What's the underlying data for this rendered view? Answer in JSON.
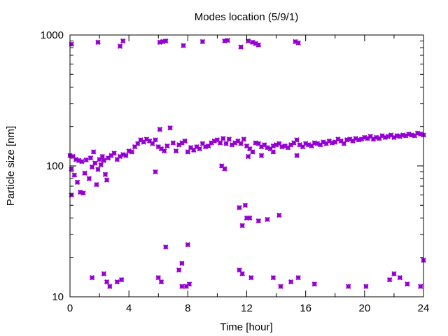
{
  "chart_data": {
    "type": "scatter",
    "title": "Modes location (5/9/1)",
    "xlabel": "Time [hour]",
    "ylabel": "Particle size [nm]",
    "xlim": [
      0,
      24
    ],
    "ylim": [
      10,
      1000
    ],
    "yscale": "log",
    "xticks": [
      "0",
      "4",
      "8",
      "12",
      "16",
      "20",
      "24"
    ],
    "yticks": [
      "10",
      "100",
      "1000"
    ],
    "grid": false,
    "marker_color": "#9400d3",
    "points": [
      [
        0.0,
        120
      ],
      [
        0.1,
        95
      ],
      [
        0.1,
        60
      ],
      [
        0.2,
        118
      ],
      [
        0.3,
        85
      ],
      [
        0.4,
        112
      ],
      [
        0.5,
        75
      ],
      [
        0.6,
        110
      ],
      [
        0.7,
        63
      ],
      [
        0.8,
        108
      ],
      [
        0.9,
        62
      ],
      [
        1.0,
        88
      ],
      [
        1.1,
        111
      ],
      [
        1.3,
        80
      ],
      [
        1.4,
        115
      ],
      [
        1.5,
        98
      ],
      [
        1.6,
        128
      ],
      [
        1.7,
        105
      ],
      [
        1.8,
        72
      ],
      [
        1.9,
        94
      ],
      [
        2.0,
        112
      ],
      [
        2.1,
        102
      ],
      [
        2.2,
        118
      ],
      [
        2.3,
        110
      ],
      [
        2.4,
        86
      ],
      [
        2.5,
        78
      ],
      [
        2.6,
        115
      ],
      [
        2.8,
        120
      ],
      [
        3.0,
        125
      ],
      [
        3.2,
        112
      ],
      [
        3.4,
        118
      ],
      [
        3.6,
        122
      ],
      [
        3.8,
        120
      ],
      [
        4.0,
        130
      ],
      [
        4.2,
        128
      ],
      [
        4.4,
        140
      ],
      [
        4.6,
        148
      ],
      [
        4.8,
        158
      ],
      [
        5.0,
        152
      ],
      [
        5.2,
        160
      ],
      [
        5.4,
        155
      ],
      [
        5.6,
        148
      ],
      [
        5.8,
        158
      ],
      [
        6.0,
        140
      ],
      [
        6.1,
        190
      ],
      [
        6.2,
        135
      ],
      [
        6.4,
        130
      ],
      [
        6.6,
        142
      ],
      [
        6.8,
        195
      ],
      [
        7.0,
        150
      ],
      [
        7.2,
        130
      ],
      [
        7.4,
        145
      ],
      [
        7.6,
        150
      ],
      [
        7.8,
        155
      ],
      [
        8.0,
        128
      ],
      [
        8.2,
        138
      ],
      [
        8.4,
        132
      ],
      [
        8.6,
        140
      ],
      [
        8.8,
        135
      ],
      [
        9.0,
        148
      ],
      [
        9.2,
        140
      ],
      [
        9.4,
        142
      ],
      [
        9.6,
        150
      ],
      [
        9.8,
        155
      ],
      [
        10.0,
        158
      ],
      [
        10.2,
        150
      ],
      [
        10.4,
        162
      ],
      [
        10.6,
        148
      ],
      [
        10.8,
        160
      ],
      [
        11.0,
        145
      ],
      [
        11.2,
        150
      ],
      [
        11.4,
        155
      ],
      [
        11.6,
        148
      ],
      [
        11.8,
        160
      ],
      [
        12.0,
        142
      ],
      [
        12.2,
        135
      ],
      [
        12.4,
        128
      ],
      [
        12.6,
        150
      ],
      [
        12.8,
        148
      ],
      [
        13.0,
        140
      ],
      [
        13.2,
        145
      ],
      [
        13.4,
        138
      ],
      [
        13.6,
        135
      ],
      [
        13.8,
        142
      ],
      [
        14.0,
        145
      ],
      [
        14.2,
        148
      ],
      [
        14.4,
        140
      ],
      [
        14.6,
        142
      ],
      [
        14.8,
        138
      ],
      [
        15.0,
        145
      ],
      [
        15.2,
        150
      ],
      [
        15.4,
        158
      ],
      [
        15.6,
        145
      ],
      [
        15.8,
        140
      ],
      [
        16.0,
        148
      ],
      [
        16.2,
        145
      ],
      [
        16.4,
        142
      ],
      [
        16.6,
        150
      ],
      [
        16.8,
        148
      ],
      [
        17.0,
        145
      ],
      [
        17.2,
        152
      ],
      [
        17.4,
        148
      ],
      [
        17.6,
        155
      ],
      [
        17.8,
        150
      ],
      [
        18.0,
        152
      ],
      [
        18.2,
        160
      ],
      [
        18.4,
        155
      ],
      [
        18.6,
        148
      ],
      [
        18.8,
        158
      ],
      [
        19.0,
        160
      ],
      [
        19.2,
        155
      ],
      [
        19.4,
        162
      ],
      [
        19.6,
        158
      ],
      [
        19.8,
        160
      ],
      [
        20.0,
        165
      ],
      [
        20.2,
        162
      ],
      [
        20.4,
        168
      ],
      [
        20.6,
        160
      ],
      [
        20.8,
        165
      ],
      [
        21.0,
        162
      ],
      [
        21.2,
        170
      ],
      [
        21.4,
        165
      ],
      [
        21.6,
        168
      ],
      [
        21.8,
        172
      ],
      [
        22.0,
        165
      ],
      [
        22.2,
        170
      ],
      [
        22.4,
        168
      ],
      [
        22.6,
        172
      ],
      [
        22.8,
        170
      ],
      [
        23.0,
        175
      ],
      [
        23.2,
        172
      ],
      [
        23.4,
        170
      ],
      [
        23.6,
        178
      ],
      [
        23.8,
        175
      ],
      [
        24.0,
        172
      ],
      [
        5.8,
        90
      ],
      [
        10.3,
        100
      ],
      [
        10.5,
        95
      ],
      [
        12.1,
        118
      ],
      [
        13.0,
        120
      ],
      [
        13.8,
        128
      ],
      [
        15.4,
        120
      ],
      [
        0.1,
        850
      ],
      [
        1.9,
        880
      ],
      [
        3.4,
        820
      ],
      [
        3.6,
        900
      ],
      [
        6.1,
        880
      ],
      [
        6.3,
        890
      ],
      [
        6.5,
        900
      ],
      [
        7.7,
        830
      ],
      [
        9.0,
        890
      ],
      [
        10.5,
        900
      ],
      [
        10.7,
        910
      ],
      [
        11.6,
        810
      ],
      [
        12.1,
        900
      ],
      [
        12.4,
        880
      ],
      [
        12.6,
        860
      ],
      [
        12.8,
        840
      ],
      [
        15.3,
        890
      ],
      [
        15.5,
        870
      ],
      [
        11.5,
        48
      ],
      [
        11.7,
        35
      ],
      [
        11.9,
        50
      ],
      [
        12.0,
        40
      ],
      [
        12.2,
        40
      ],
      [
        12.8,
        38
      ],
      [
        13.4,
        39
      ],
      [
        14.2,
        42
      ],
      [
        6.5,
        24
      ],
      [
        8.0,
        25
      ],
      [
        7.6,
        18
      ],
      [
        1.5,
        14
      ],
      [
        2.3,
        15
      ],
      [
        2.5,
        13
      ],
      [
        2.7,
        12
      ],
      [
        3.2,
        13
      ],
      [
        3.5,
        13.5
      ],
      [
        6.0,
        14
      ],
      [
        6.2,
        13
      ],
      [
        7.4,
        16
      ],
      [
        7.6,
        12
      ],
      [
        7.9,
        12
      ],
      [
        8.1,
        12.5
      ],
      [
        11.5,
        16
      ],
      [
        11.7,
        15
      ],
      [
        12.3,
        14
      ],
      [
        13.8,
        14
      ],
      [
        14.3,
        12
      ],
      [
        15.0,
        13
      ],
      [
        15.5,
        14
      ],
      [
        16.6,
        12.5
      ],
      [
        18.9,
        12
      ],
      [
        20.1,
        12
      ],
      [
        21.7,
        13.5
      ],
      [
        22.0,
        15
      ],
      [
        22.4,
        14
      ],
      [
        22.9,
        12.5
      ],
      [
        23.8,
        12
      ],
      [
        24.0,
        19
      ]
    ]
  }
}
